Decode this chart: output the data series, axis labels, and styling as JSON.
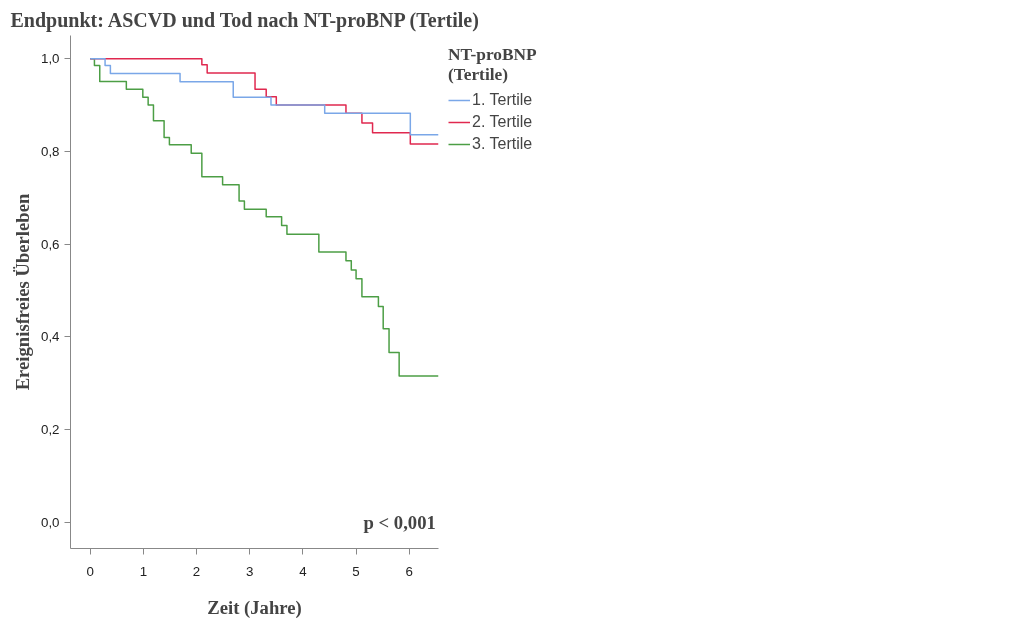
{
  "chart_data": {
    "type": "step",
    "title": "Endpunkt: ASCVD und Tod nach NT-proBNP (Tertile)",
    "xlabel": "Zeit (Jahre)",
    "ylabel": "Ereignisfreies Überleben",
    "legend_title": "NT-proBNP (Tertile)",
    "legend": "right",
    "grid": false,
    "marker": "none",
    "line_style": "solid",
    "xlim": [
      -0.37,
      6.55
    ],
    "ylim": [
      -0.057,
      1.05
    ],
    "xticks": [
      0,
      1,
      2,
      3,
      4,
      5,
      6
    ],
    "yticks": [
      {
        "value": 0,
        "label": "0,0"
      },
      {
        "value": 0.2,
        "label": "0,2"
      },
      {
        "value": 0.4,
        "label": "0,4"
      },
      {
        "value": 0.6,
        "label": "0,6"
      },
      {
        "value": 0.8,
        "label": "0,8"
      },
      {
        "value": 1.0,
        "label": "1,0"
      }
    ],
    "annotations": [
      "p < 0,001"
    ],
    "series": [
      {
        "name": "1. Tertile",
        "color": "#7aa7e8",
        "x": [
          0,
          0.28,
          0.38,
          1.69,
          2.69,
          3.4,
          4.41,
          6.02,
          6.55
        ],
        "values": [
          1.0,
          0.985,
          0.968,
          0.95,
          0.917,
          0.9,
          0.882,
          0.836,
          0.836
        ]
      },
      {
        "name": "2. Tertile",
        "color": "#e0284f",
        "x": [
          0,
          2.1,
          2.2,
          3.1,
          3.31,
          3.5,
          4.81,
          5.11,
          5.31,
          6.02,
          6.55
        ],
        "values": [
          1.0,
          0.987,
          0.969,
          0.934,
          0.918,
          0.9,
          0.882,
          0.861,
          0.84,
          0.816,
          0.816
        ]
      },
      {
        "name": "3. Tertile",
        "color": "#4c9e45",
        "x": [
          0,
          0.08,
          0.18,
          0.68,
          0.99,
          1.09,
          1.19,
          1.39,
          1.49,
          1.9,
          2.1,
          2.49,
          2.8,
          2.9,
          3.31,
          3.6,
          3.7,
          4.3,
          4.81,
          4.91,
          5.0,
          5.11,
          5.42,
          5.51,
          5.62,
          5.81,
          6.55
        ],
        "values": [
          1.0,
          0.985,
          0.951,
          0.934,
          0.917,
          0.9,
          0.866,
          0.83,
          0.814,
          0.796,
          0.745,
          0.728,
          0.693,
          0.675,
          0.659,
          0.64,
          0.621,
          0.583,
          0.564,
          0.544,
          0.525,
          0.486,
          0.465,
          0.417,
          0.366,
          0.315,
          0.315
        ]
      }
    ]
  }
}
